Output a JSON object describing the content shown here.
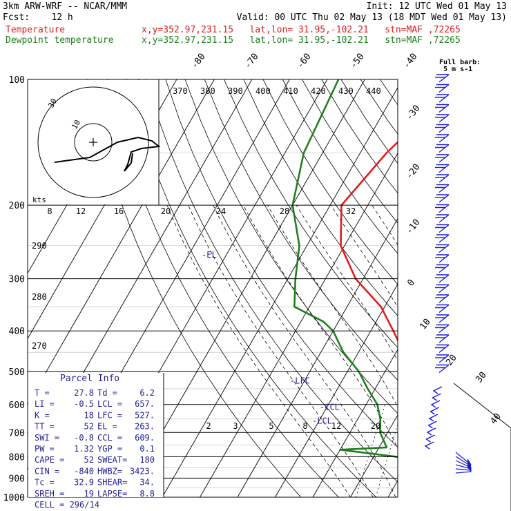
{
  "header": {
    "line1_left": "3km ARW-WRF -- NCAR/MMM",
    "line1_right": "Init: 12 UTC Wed 01 May 13",
    "line2_left": "Fcst:    12 h",
    "line2_right": "Valid: 00 UTC Thu 02 May 13 (18 MDT Wed 01 May 13)",
    "temp_label": "Temperature",
    "temp_info": "x,y=352.97,231.15   lat,lon= 31.95,-102.21   stn=MAF ,72265",
    "dew_label": "Dewpoint temperature",
    "dew_info": "x,y=352.97,231.15   lat,lon= 31.95,-102.21   stn=MAF ,72265"
  },
  "colors": {
    "temperature": "#e21b1b",
    "dewpoint": "#1f7f1f",
    "wind": "#1a1ad6",
    "info": "#22229a",
    "grid": "#000000"
  },
  "chart_data": {
    "type": "line",
    "diagram": "skew-T log-p",
    "pressure_levels": [
      100,
      200,
      300,
      400,
      500,
      600,
      700,
      800,
      900,
      1000
    ],
    "isotherm_labels": [
      -80,
      -70,
      -60,
      -50,
      -40,
      -30,
      -20,
      -10,
      0,
      10,
      20,
      30,
      40
    ],
    "dry_adiabat_labels": [
      370,
      380,
      390,
      400,
      410,
      420,
      430,
      440
    ],
    "moist_adiabat_labels": [
      8,
      12,
      16,
      20,
      24,
      28,
      32
    ],
    "mixing_ratio_labels": [
      2,
      3,
      5,
      8,
      12,
      20
    ],
    "left_theta_labels": [
      290,
      280,
      270
    ],
    "series": [
      {
        "name": "Temperature",
        "points": [
          [
            100,
            -44
          ],
          [
            150,
            -53
          ],
          [
            200,
            -57
          ],
          [
            250,
            -51
          ],
          [
            300,
            -42
          ],
          [
            350,
            -31
          ],
          [
            400,
            -24
          ],
          [
            450,
            -18
          ],
          [
            500,
            -12
          ],
          [
            550,
            -6
          ],
          [
            600,
            -1
          ],
          [
            650,
            4
          ],
          [
            700,
            9
          ],
          [
            720,
            10
          ],
          [
            750,
            11
          ],
          [
            780,
            15
          ],
          [
            800,
            17
          ],
          [
            850,
            22
          ],
          [
            900,
            27.8
          ]
        ]
      },
      {
        "name": "Dewpoint temperature",
        "points": [
          [
            100,
            -77
          ],
          [
            150,
            -75
          ],
          [
            200,
            -70
          ],
          [
            250,
            -62
          ],
          [
            300,
            -58
          ],
          [
            350,
            -54
          ],
          [
            380,
            -44
          ],
          [
            400,
            -40
          ],
          [
            450,
            -34
          ],
          [
            500,
            -27
          ],
          [
            550,
            -22
          ],
          [
            600,
            -17
          ],
          [
            650,
            -14
          ],
          [
            700,
            -12
          ],
          [
            760,
            -8
          ],
          [
            770,
            -20
          ],
          [
            800,
            -4
          ],
          [
            830,
            2
          ],
          [
            870,
            3
          ],
          [
            900,
            6.2
          ]
        ]
      }
    ],
    "annotations": [
      {
        "text": "-EL",
        "pressure": 263
      },
      {
        "text": "-LFC",
        "pressure": 527
      },
      {
        "text": "-CCL",
        "pressure": 609
      },
      {
        "text": "-LCL",
        "pressure": 657
      }
    ],
    "wind_barbs": {
      "note": "barbs plotted along right edge",
      "full_barb_label": "Full barb:",
      "full_barb_units": "5 m s-1"
    },
    "hodograph": {
      "units_label": "kts",
      "ring_labels": [
        "10",
        "30"
      ]
    }
  },
  "parcel_info": {
    "title": "Parcel Info",
    "rows": [
      [
        "T  =",
        "27.8",
        "Td =",
        "6.2"
      ],
      [
        "LI =",
        "-0.5",
        "LCL =",
        "657."
      ],
      [
        "K  =",
        "18",
        "LFC =",
        "527."
      ],
      [
        "TT =",
        "52",
        "EL =",
        "263."
      ],
      [
        "SWI =",
        "-0.8",
        "CCL =",
        "609."
      ],
      [
        "PW =",
        "1.32",
        "YGP =",
        "0.1"
      ],
      [
        "CAPE =",
        "52",
        "SWEAT=",
        "180"
      ],
      [
        "CIN =",
        "-840",
        "HWBZ=",
        "3423."
      ],
      [
        "Tc =",
        "32.9",
        "SHEAR=",
        "34."
      ],
      [
        "SREH =",
        "19",
        "LAPSE=",
        "8.8"
      ]
    ],
    "cell_label": "CELL = 296/14"
  }
}
